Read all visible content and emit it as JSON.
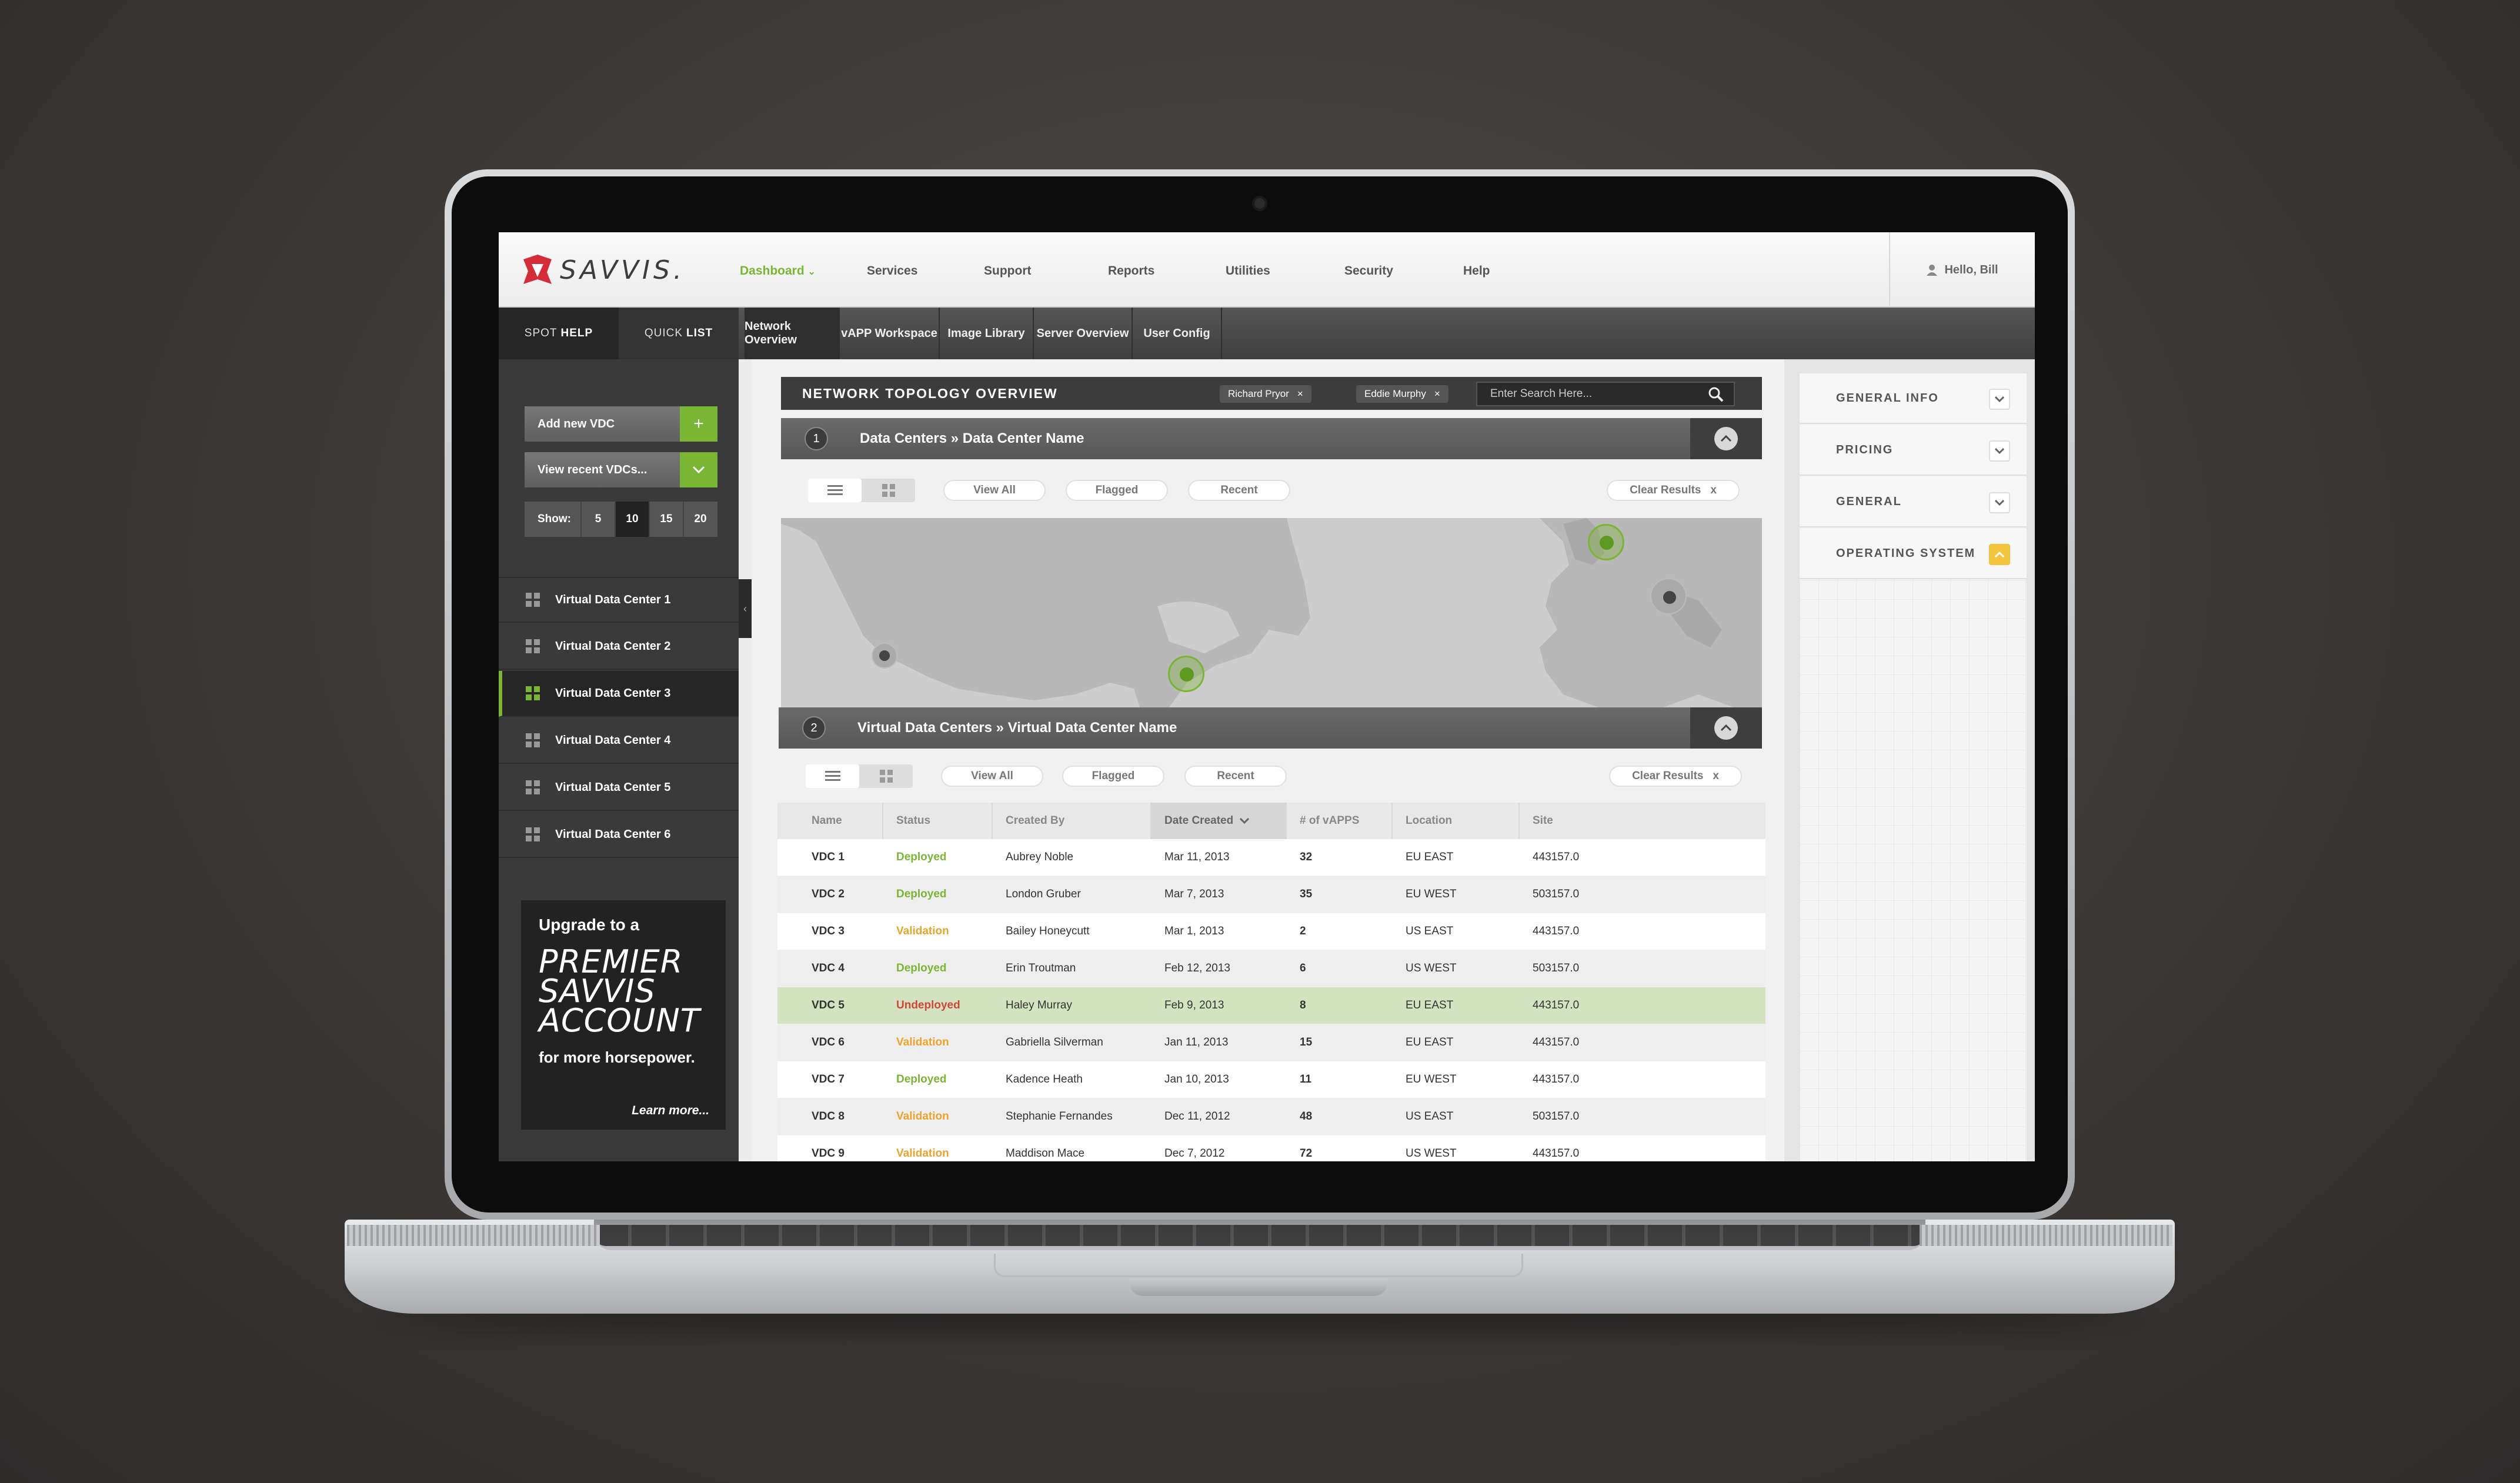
{
  "brand": {
    "name": "SAVVIS.",
    "accent": "#7ab534",
    "logo_red": "#d62b38"
  },
  "topnav": {
    "items": [
      "Dashboard",
      "Services",
      "Support",
      "Reports",
      "Utilities",
      "Security",
      "Help"
    ],
    "active": "Dashboard",
    "user_greeting": "Hello, Bill"
  },
  "spot": {
    "tab1_light": "SPOT",
    "tab1_bold": "HELP",
    "tab2_light": "QUICK",
    "tab2_bold": "LIST"
  },
  "main_tabs": [
    "Network Overview",
    "vAPP Workspace",
    "Image Library",
    "Server Overview",
    "User Config"
  ],
  "sidebar": {
    "add_label": "Add new VDC",
    "add_icon": "+",
    "recent_label": "View recent VDCs...",
    "show_label": "Show:",
    "show_options": [
      "5",
      "10",
      "15",
      "20"
    ],
    "show_selected": "10",
    "vdcs": [
      "Virtual Data Center 1",
      "Virtual Data Center 2",
      "Virtual Data Center 3",
      "Virtual Data Center 4",
      "Virtual Data Center 5",
      "Virtual Data Center 6"
    ],
    "active_vdc": 2,
    "upgrade": {
      "line1": "Upgrade to a",
      "big1": "PREMIER",
      "big2": "SAVVIS",
      "big3": "ACCOUNT",
      "line3": "for more horsepower.",
      "cta": "Learn more..."
    }
  },
  "topology": {
    "title": "NETWORK TOPOLOGY OVERVIEW",
    "chips": [
      "Richard Pryor",
      "Eddie Murphy"
    ],
    "chip_remove": "×",
    "search_placeholder": "Enter Search Here..."
  },
  "section1": {
    "num": "1",
    "crumb1": "Data Centers",
    "sep": "»",
    "crumb2": "Data Center Name"
  },
  "section2": {
    "num": "2",
    "crumb1": "Virtual Data Centers",
    "sep": "»",
    "crumb2": "Virtual Data Center Name"
  },
  "filters": {
    "view_all": "View All",
    "flagged": "Flagged",
    "recent": "Recent",
    "clear": "Clear Results",
    "clear_x": "x"
  },
  "table": {
    "headers": [
      "Name",
      "Status",
      "Created By",
      "Date Created",
      "# of vAPPS",
      "Location",
      "Site"
    ],
    "sorted_col": "Date Created",
    "rows": [
      {
        "name": "VDC 1",
        "status": "Deployed",
        "by": "Aubrey Noble",
        "date": "Mar 11, 2013",
        "vapps": "32",
        "loc": "EU EAST",
        "site": "443157.0"
      },
      {
        "name": "VDC 2",
        "status": "Deployed",
        "by": "London Gruber",
        "date": "Mar 7, 2013",
        "vapps": "35",
        "loc": "EU WEST",
        "site": "503157.0"
      },
      {
        "name": "VDC 3",
        "status": "Validation",
        "by": "Bailey Honeycutt",
        "date": "Mar 1, 2013",
        "vapps": "2",
        "loc": "US EAST",
        "site": "443157.0"
      },
      {
        "name": "VDC 4",
        "status": "Deployed",
        "by": "Erin Troutman",
        "date": "Feb 12, 2013",
        "vapps": "6",
        "loc": "US WEST",
        "site": "503157.0"
      },
      {
        "name": "VDC 5",
        "status": "Undeployed",
        "by": "Haley Murray",
        "date": "Feb 9, 2013",
        "vapps": "8",
        "loc": "EU EAST",
        "site": "443157.0"
      },
      {
        "name": "VDC 6",
        "status": "Validation",
        "by": "Gabriella Silverman",
        "date": "Jan 11, 2013",
        "vapps": "15",
        "loc": "EU EAST",
        "site": "443157.0"
      },
      {
        "name": "VDC 7",
        "status": "Deployed",
        "by": "Kadence Heath",
        "date": "Jan 10, 2013",
        "vapps": "11",
        "loc": "EU WEST",
        "site": "443157.0"
      },
      {
        "name": "VDC 8",
        "status": "Validation",
        "by": "Stephanie Fernandes",
        "date": "Dec 11, 2012",
        "vapps": "48",
        "loc": "US EAST",
        "site": "503157.0"
      },
      {
        "name": "VDC 9",
        "status": "Validation",
        "by": "Maddison Mace",
        "date": "Dec 7, 2012",
        "vapps": "72",
        "loc": "US WEST",
        "site": "443157.0"
      }
    ],
    "highlight_row": 4,
    "status_colors": {
      "Deployed": "#7ab534",
      "Validation": "#e9a52b",
      "Undeployed": "#d0463a"
    }
  },
  "right_panel": {
    "items": [
      "GENERAL INFO",
      "PRICING",
      "GENERAL",
      "OPERATING SYSTEM"
    ],
    "expanded": "OPERATING SYSTEM"
  }
}
